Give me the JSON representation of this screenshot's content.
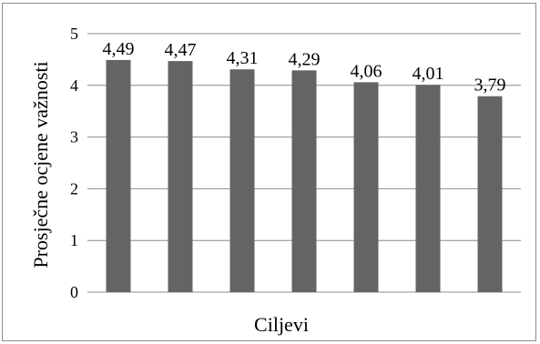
{
  "chart_data": {
    "type": "bar",
    "categories": [
      "",
      "",
      "",
      "",
      "",
      "",
      ""
    ],
    "values": [
      4.49,
      4.47,
      4.31,
      4.29,
      4.06,
      4.01,
      3.79
    ],
    "data_labels": [
      "4,49",
      "4,47",
      "4,31",
      "4,29",
      "4,06",
      "4,01",
      "3,79"
    ],
    "title": "",
    "xlabel": "Ciljevi",
    "ylabel": "Prosječne ocjene važnosti",
    "ylim": [
      0,
      5
    ],
    "yticks": [
      0,
      1,
      2,
      3,
      4,
      5
    ],
    "ytick_labels": [
      "0",
      "1",
      "2",
      "3",
      "4",
      "5"
    ],
    "grid": true,
    "legend": "none",
    "bar_color": "#646464"
  }
}
